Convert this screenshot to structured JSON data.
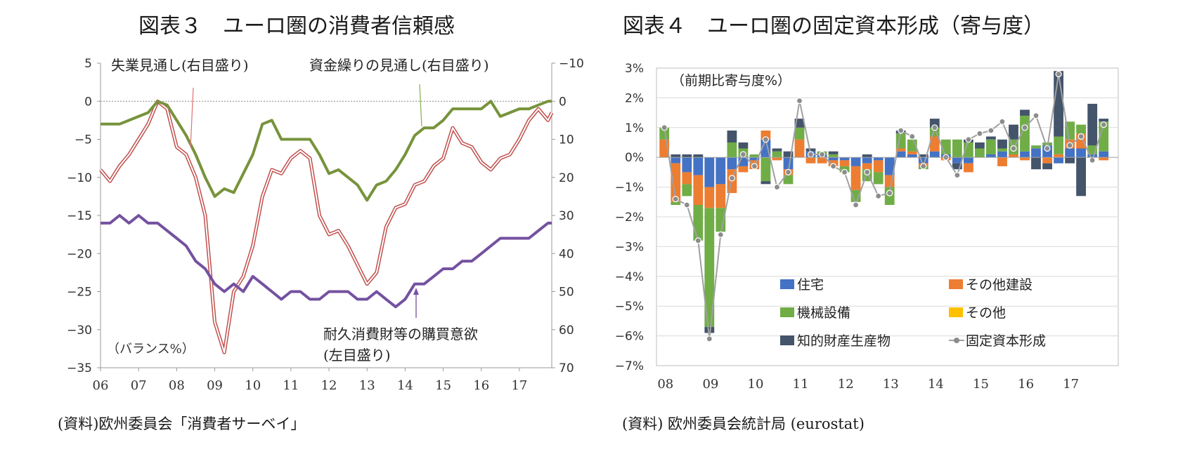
{
  "left": {
    "title": "図表３　ユーロ圏の消費者信頼感",
    "source": "(資料)欧州委員会「消費者サーベイ」",
    "chart_data": {
      "type": "line",
      "unit_label": "（バランス%）",
      "x_categories": [
        "06",
        "07",
        "08",
        "09",
        "10",
        "11",
        "12",
        "13",
        "14",
        "15",
        "16",
        "17"
      ],
      "y_left": {
        "min": -35,
        "max": 5,
        "ticks": [
          5,
          0,
          -5,
          -10,
          -15,
          -20,
          -25,
          -30,
          -35
        ]
      },
      "y_right": {
        "min": -10,
        "max": 70,
        "inverted": true,
        "ticks": [
          -10,
          0,
          10,
          20,
          30,
          40,
          50,
          60,
          70
        ]
      },
      "annotations": [
        {
          "text": "失業見通し(右目盛り)",
          "series": "unemployment"
        },
        {
          "text": "資金繰りの見通し(右目盛り)",
          "series": "finance"
        },
        {
          "text": "耐久消費財等の購買意欲",
          "series": "durables"
        },
        {
          "text": "(左目盛り)",
          "series": "durables"
        }
      ],
      "series": [
        {
          "name": "失業見通し(右目盛り)",
          "key": "unemployment",
          "axis": "right",
          "color": "#c0504d",
          "x": [
            2006.0,
            2006.25,
            2006.5,
            2006.75,
            2007.0,
            2007.25,
            2007.5,
            2007.75,
            2008.0,
            2008.25,
            2008.5,
            2008.75,
            2009.0,
            2009.25,
            2009.5,
            2009.75,
            2010.0,
            2010.25,
            2010.5,
            2010.75,
            2011.0,
            2011.25,
            2011.5,
            2011.75,
            2012.0,
            2012.25,
            2012.5,
            2012.75,
            2013.0,
            2013.25,
            2013.5,
            2013.75,
            2014.0,
            2014.25,
            2014.5,
            2014.75,
            2015.0,
            2015.25,
            2015.5,
            2015.75,
            2016.0,
            2016.25,
            2016.5,
            2016.75,
            2017.0,
            2017.25,
            2017.5,
            2017.75,
            2017.85
          ],
          "values": [
            18,
            21,
            17,
            14,
            10,
            6,
            0,
            2,
            12,
            14,
            20,
            30,
            58,
            66,
            50,
            46,
            38,
            25,
            18,
            19,
            15,
            13,
            15,
            30,
            35,
            34,
            38,
            43,
            48,
            45,
            33,
            28,
            27,
            22,
            21,
            17,
            15,
            7,
            11,
            12,
            16,
            18,
            15,
            14,
            10,
            5,
            2,
            5,
            3
          ]
        },
        {
          "name": "資金繰りの見通し(右目盛り)",
          "key": "finance",
          "axis": "right",
          "color": "#77933c",
          "x": [
            2006.0,
            2006.25,
            2006.5,
            2006.75,
            2007.0,
            2007.25,
            2007.5,
            2007.75,
            2008.0,
            2008.25,
            2008.5,
            2008.75,
            2009.0,
            2009.25,
            2009.5,
            2009.75,
            2010.0,
            2010.25,
            2010.5,
            2010.75,
            2011.0,
            2011.25,
            2011.5,
            2011.75,
            2012.0,
            2012.25,
            2012.5,
            2012.75,
            2013.0,
            2013.25,
            2013.5,
            2013.75,
            2014.0,
            2014.25,
            2014.5,
            2014.75,
            2015.0,
            2015.25,
            2015.5,
            2015.75,
            2016.0,
            2016.25,
            2016.5,
            2016.75,
            2017.0,
            2017.25,
            2017.5,
            2017.75,
            2017.85
          ],
          "values": [
            6,
            6,
            6,
            5,
            4,
            3,
            0,
            1,
            5,
            9,
            14,
            20,
            25,
            23,
            24,
            19,
            14,
            6,
            5,
            10,
            10,
            10,
            10,
            14,
            19,
            18,
            20,
            22,
            26,
            22,
            21,
            18,
            14,
            9,
            7,
            7,
            5,
            2,
            2,
            2,
            2,
            0,
            4,
            3,
            2,
            2,
            1,
            0,
            0
          ]
        },
        {
          "name": "耐久消費財等の購買意欲(左目盛り)",
          "key": "durables",
          "axis": "left",
          "color": "#7451a0",
          "x": [
            2006.0,
            2006.25,
            2006.5,
            2006.75,
            2007.0,
            2007.25,
            2007.5,
            2007.75,
            2008.0,
            2008.25,
            2008.5,
            2008.75,
            2009.0,
            2009.25,
            2009.5,
            2009.75,
            2010.0,
            2010.25,
            2010.5,
            2010.75,
            2011.0,
            2011.25,
            2011.5,
            2011.75,
            2012.0,
            2012.25,
            2012.5,
            2012.75,
            2013.0,
            2013.25,
            2013.5,
            2013.75,
            2014.0,
            2014.25,
            2014.5,
            2014.75,
            2015.0,
            2015.25,
            2015.5,
            2015.75,
            2016.0,
            2016.25,
            2016.5,
            2016.75,
            2017.0,
            2017.25,
            2017.5,
            2017.75,
            2017.85
          ],
          "values": [
            -16,
            -16,
            -15,
            -16,
            -15,
            -16,
            -16,
            -17,
            -18,
            -19,
            -21,
            -22,
            -24,
            -25,
            -24,
            -25,
            -23,
            -24,
            -25,
            -26,
            -25,
            -25,
            -26,
            -26,
            -25,
            -25,
            -25,
            -26,
            -26,
            -25,
            -26,
            -27,
            -26,
            -24,
            -24,
            -23,
            -22,
            -22,
            -21,
            -21,
            -20,
            -19,
            -18,
            -18,
            -18,
            -18,
            -17,
            -16,
            -16
          ]
        }
      ]
    }
  },
  "right": {
    "title": "図表４　ユーロ圏の固定資本形成（寄与度）",
    "source": "(資料) 欧州委員会統計局 (eurostat)",
    "chart_data": {
      "type": "bar",
      "stacked": true,
      "unit_label": "（前期比寄与度%）",
      "x_categories": [
        "08",
        "09",
        "10",
        "11",
        "12",
        "13",
        "14",
        "15",
        "16",
        "17"
      ],
      "y": {
        "min": -7,
        "max": 3,
        "ticks": [
          "3%",
          "2%",
          "1%",
          "0%",
          "-1%",
          "-2%",
          "-3%",
          "-4%",
          "-5%",
          "-6%",
          "-7%"
        ]
      },
      "quarters": [
        "2008Q1",
        "2008Q2",
        "2008Q3",
        "2008Q4",
        "2009Q1",
        "2009Q2",
        "2009Q3",
        "2009Q4",
        "2010Q1",
        "2010Q2",
        "2010Q3",
        "2010Q4",
        "2011Q1",
        "2011Q2",
        "2011Q3",
        "2011Q4",
        "2012Q1",
        "2012Q2",
        "2012Q3",
        "2012Q4",
        "2013Q1",
        "2013Q2",
        "2013Q3",
        "2013Q4",
        "2014Q1",
        "2014Q2",
        "2014Q3",
        "2014Q4",
        "2015Q1",
        "2015Q2",
        "2015Q3",
        "2015Q4",
        "2016Q1",
        "2016Q2",
        "2016Q3",
        "2016Q4",
        "2017Q1",
        "2017Q2",
        "2017Q3",
        "2017Q4"
      ],
      "series": [
        {
          "name": "住宅",
          "color": "#4472c4",
          "values": [
            0.0,
            -0.2,
            -0.5,
            -0.6,
            -1.0,
            -0.9,
            -0.4,
            -0.3,
            -0.1,
            0.6,
            0.0,
            -0.4,
            0.0,
            0.2,
            0.1,
            -0.1,
            -0.1,
            -0.3,
            -0.2,
            -0.1,
            -0.6,
            0.2,
            0.1,
            -0.2,
            0.2,
            0.1,
            -0.2,
            -0.2,
            0.0,
            0.1,
            0.2,
            0.0,
            0.2,
            0.3,
            0.4,
            -0.2,
            0.3,
            0.3,
            0.1,
            0.2
          ]
        },
        {
          "name": "その他建設",
          "color": "#ed7d31",
          "values": [
            0.6,
            -1.3,
            -0.4,
            -1.0,
            -0.7,
            -0.8,
            -0.8,
            -0.2,
            -0.3,
            0.3,
            -0.1,
            -0.2,
            0.6,
            -0.2,
            -0.2,
            -0.2,
            -0.2,
            -0.8,
            -0.2,
            -0.4,
            -0.4,
            0.1,
            0.1,
            -0.1,
            0.5,
            -0.1,
            0.0,
            -0.3,
            0.0,
            0.0,
            -0.3,
            0.1,
            -0.1,
            0.0,
            -0.2,
            0.1,
            0.3,
            0.5,
            0.0,
            -0.1
          ]
        },
        {
          "name": "機械設備",
          "color": "#70ad47",
          "values": [
            0.4,
            -0.1,
            -0.4,
            -1.2,
            -4.0,
            -0.8,
            0.5,
            0.3,
            0.1,
            -0.8,
            0.2,
            -0.3,
            0.4,
            0.0,
            0.1,
            0.1,
            -0.2,
            -0.4,
            -0.4,
            -0.4,
            -0.6,
            0.5,
            0.4,
            -0.1,
            0.3,
            0.5,
            0.6,
            0.5,
            0.3,
            0.5,
            0.1,
            0.5,
            1.2,
            0.1,
            0.1,
            0.6,
            0.6,
            0.3,
            0.3,
            1.0
          ]
        },
        {
          "name": "その他",
          "color": "#ffc000",
          "values": [
            0,
            0,
            0,
            0,
            0,
            0,
            0,
            0,
            0,
            0,
            0,
            0,
            0,
            0,
            0,
            0,
            0,
            0,
            0,
            0,
            0,
            0,
            0,
            0,
            0,
            0,
            0,
            0,
            0,
            0,
            0,
            0,
            0,
            0,
            0,
            0,
            0,
            0,
            0,
            0
          ]
        },
        {
          "name": "知的財産生産物",
          "color": "#44546a",
          "values": [
            0.0,
            0.1,
            0.1,
            0.1,
            -0.2,
            0.0,
            0.4,
            0.2,
            0.0,
            -0.1,
            0.1,
            0.2,
            0.3,
            0.1,
            0.0,
            0.1,
            0.0,
            0.0,
            0.1,
            0.0,
            0.0,
            0.1,
            0.0,
            0.1,
            0.3,
            0.0,
            -0.2,
            0.1,
            0.2,
            0.1,
            0.3,
            0.5,
            0.2,
            -0.4,
            -0.2,
            2.2,
            -0.2,
            -1.3,
            1.4,
            0.1
          ]
        },
        {
          "name": "固定資本形成",
          "color": "#8c8c8c",
          "line": true,
          "values": [
            1.0,
            -1.4,
            -1.6,
            -2.8,
            -6.1,
            -2.6,
            -0.7,
            0.1,
            -0.3,
            0.6,
            -1.0,
            -0.5,
            1.9,
            0.1,
            0.1,
            -0.3,
            -0.5,
            -1.6,
            -0.5,
            -1.3,
            -1.2,
            0.9,
            0.7,
            -0.3,
            1.0,
            0.0,
            -0.6,
            0.6,
            0.8,
            0.9,
            1.2,
            0.3,
            1.0,
            1.4,
            0.3,
            2.8,
            0.4,
            0.7,
            -0.1,
            1.1
          ]
        }
      ],
      "legend": [
        "住宅",
        "その他建設",
        "機械設備",
        "その他",
        "知的財産生産物",
        "固定資本形成"
      ]
    }
  }
}
